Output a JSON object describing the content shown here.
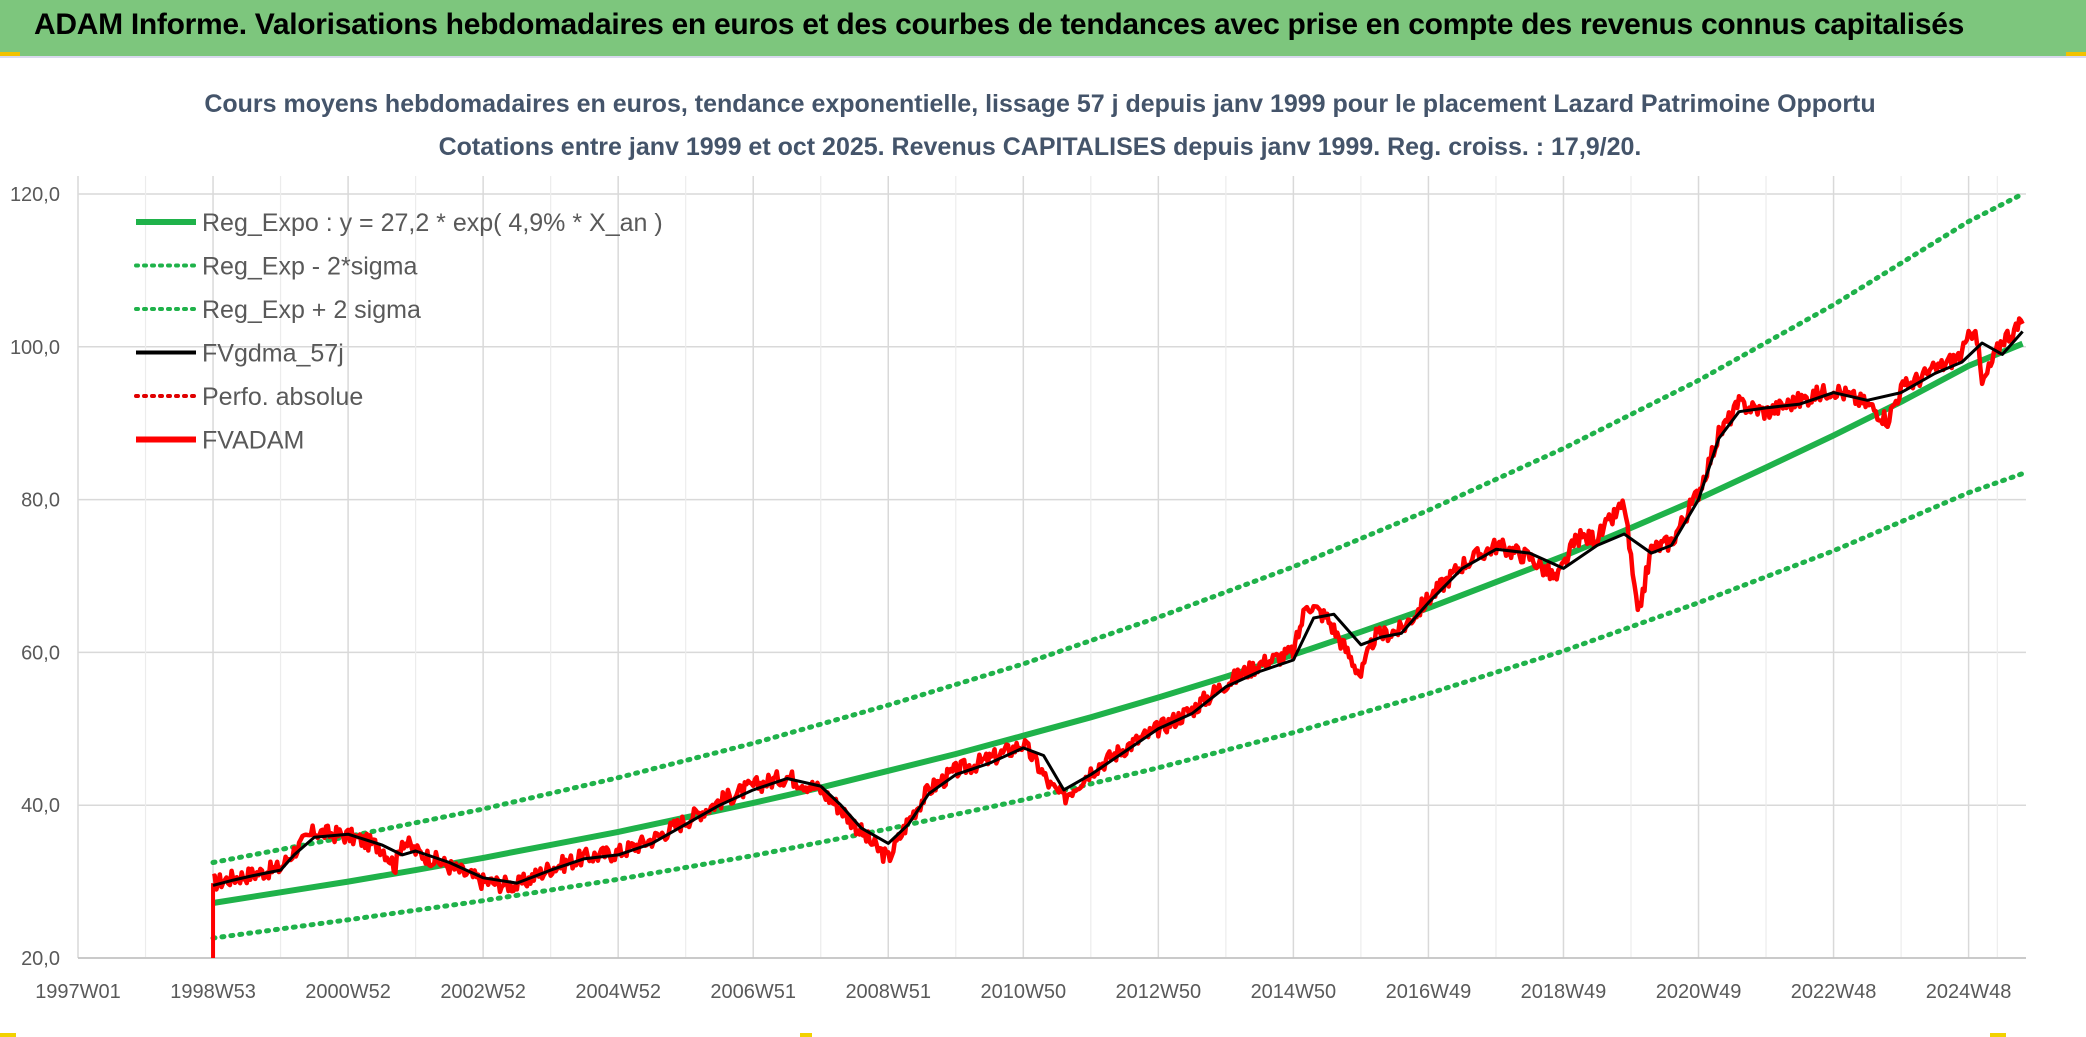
{
  "header": {
    "title": "ADAM Informe. Valorisations hebdomadaires en euros et des courbes de tendances avec prise en compte des revenus connus capitalisés"
  },
  "colors": {
    "header_bg": "#7dc67d",
    "reg_expo": "#1fb24a",
    "reg_band": "#1fb24a",
    "fvgdma": "#000000",
    "perfo": "#e00000",
    "fvadam": "#ff0000",
    "grid": "#d9d9d9",
    "title_text": "#44546a"
  },
  "chart_data": {
    "type": "line",
    "title": "Cours moyens hebdomadaires en euros, tendance exponentielle, lissage 57 j depuis janv 1999 pour le placement Lazard Patrimoine Opportu",
    "subtitle": "Cotations entre janv 1999 et oct 2025. Revenus CAPITALISES depuis janv 1999. Reg. croiss. : 17,9/20.",
    "xlabel": "",
    "ylabel": "",
    "ylim": [
      20,
      120
    ],
    "y_ticks": [
      "20,0",
      "40,0",
      "60,0",
      "80,0",
      "100,0",
      "120,0"
    ],
    "y_tick_values": [
      20,
      40,
      60,
      80,
      100,
      120
    ],
    "xlim": [
      1997.0,
      2025.85
    ],
    "x_ticks": [
      "1997W01",
      "1998W53",
      "2000W52",
      "2002W52",
      "2004W52",
      "2006W51",
      "2008W51",
      "2010W50",
      "2012W50",
      "2014W50",
      "2016W49",
      "2018W49",
      "2020W49",
      "2022W48",
      "2024W48"
    ],
    "x_tick_values": [
      1997.0,
      1999.0,
      2001.0,
      2003.0,
      2005.0,
      2007.0,
      2009.0,
      2011.0,
      2013.0,
      2015.0,
      2017.0,
      2019.0,
      2021.0,
      2023.0,
      2025.0
    ],
    "grid": true,
    "legend_position": "top-left",
    "legend": [
      {
        "name": "Reg_Expo : y = 27,2 * exp( 4,9% *  X_an )",
        "style": "solid-thick",
        "color": "#1fb24a"
      },
      {
        "name": "Reg_Exp - 2*sigma",
        "style": "dotted",
        "color": "#1fb24a"
      },
      {
        "name": "Reg_Exp + 2 sigma",
        "style": "dotted",
        "color": "#1fb24a"
      },
      {
        "name": "FVgdma_57j",
        "style": "solid",
        "color": "#000000"
      },
      {
        "name": "Perfo. absolue",
        "style": "dotted",
        "color": "#e00000"
      },
      {
        "name": "FVADAM",
        "style": "solid-thick",
        "color": "#ff0000"
      }
    ],
    "series": [
      {
        "name": "Reg_Expo",
        "x": [
          1999.0,
          2000.0,
          2001.0,
          2002.0,
          2003.0,
          2004.0,
          2005.0,
          2006.0,
          2007.0,
          2008.0,
          2009.0,
          2010.0,
          2011.0,
          2012.0,
          2013.0,
          2014.0,
          2015.0,
          2016.0,
          2017.0,
          2018.0,
          2019.0,
          2020.0,
          2021.0,
          2022.0,
          2023.0,
          2024.0,
          2025.0,
          2025.8
        ],
        "values": [
          27.2,
          28.6,
          30.0,
          31.5,
          33.1,
          34.8,
          36.5,
          38.4,
          40.3,
          42.3,
          44.5,
          46.7,
          49.1,
          51.5,
          54.1,
          56.8,
          59.7,
          62.7,
          65.8,
          69.2,
          72.6,
          76.3,
          80.1,
          84.2,
          88.4,
          92.8,
          97.5,
          100.4
        ]
      },
      {
        "name": "Reg_Exp - 2*sigma",
        "x": [
          1999.0,
          2001.0,
          2003.0,
          2005.0,
          2007.0,
          2009.0,
          2011.0,
          2013.0,
          2015.0,
          2017.0,
          2019.0,
          2021.0,
          2023.0,
          2025.0,
          2025.8
        ],
        "values": [
          22.6,
          25.0,
          27.5,
          30.3,
          33.4,
          36.9,
          40.7,
          44.9,
          49.5,
          54.6,
          60.2,
          66.5,
          73.3,
          80.9,
          83.4
        ]
      },
      {
        "name": "Reg_Exp + 2 sigma",
        "x": [
          1999.0,
          2001.0,
          2003.0,
          2005.0,
          2007.0,
          2009.0,
          2011.0,
          2013.0,
          2015.0,
          2017.0,
          2019.0,
          2021.0,
          2023.0,
          2025.0,
          2025.8
        ],
        "values": [
          32.5,
          35.9,
          39.5,
          43.6,
          48.1,
          53.1,
          58.5,
          64.6,
          71.2,
          78.6,
          86.7,
          95.6,
          105.5,
          116.4,
          120.0
        ]
      },
      {
        "name": "FVgdma_57j",
        "x": [
          1999.0,
          1999.3,
          1999.6,
          2000.0,
          2000.2,
          2000.5,
          2001.0,
          2001.5,
          2001.8,
          2002.0,
          2002.5,
          2003.0,
          2003.5,
          2004.0,
          2004.5,
          2005.0,
          2005.5,
          2006.0,
          2006.5,
          2007.0,
          2007.5,
          2008.0,
          2008.3,
          2008.6,
          2009.0,
          2009.3,
          2009.6,
          2010.0,
          2010.5,
          2011.0,
          2011.3,
          2011.6,
          2012.0,
          2012.5,
          2013.0,
          2013.5,
          2014.0,
          2014.5,
          2015.0,
          2015.3,
          2015.6,
          2016.0,
          2016.3,
          2016.6,
          2017.0,
          2017.5,
          2018.0,
          2018.5,
          2019.0,
          2019.5,
          2019.9,
          2020.3,
          2020.6,
          2021.0,
          2021.3,
          2021.6,
          2022.0,
          2022.5,
          2023.0,
          2023.5,
          2024.0,
          2024.5,
          2024.9,
          2025.2,
          2025.5,
          2025.8
        ],
        "values": [
          29.5,
          30.2,
          30.8,
          31.5,
          33.5,
          35.8,
          36.2,
          34.8,
          33.5,
          34.0,
          32.5,
          30.5,
          29.8,
          31.5,
          33.0,
          33.5,
          35.0,
          37.5,
          40.0,
          42.0,
          43.5,
          42.5,
          40.0,
          37.0,
          35.0,
          37.5,
          41.5,
          44.0,
          45.5,
          47.5,
          46.5,
          42.0,
          44.0,
          47.0,
          50.0,
          52.0,
          55.5,
          57.5,
          59.0,
          64.5,
          65.0,
          61.0,
          62.0,
          62.5,
          66.5,
          71.0,
          73.5,
          73.0,
          71.0,
          74.0,
          75.5,
          73.0,
          74.0,
          80.0,
          88.0,
          91.5,
          92.0,
          92.5,
          94.0,
          93.0,
          94.0,
          96.5,
          98.0,
          100.5,
          99.0,
          102.0
        ]
      },
      {
        "name": "FVADAM",
        "x": [
          1999.0,
          1999.3,
          1999.6,
          2000.0,
          2000.2,
          2000.5,
          2001.0,
          2001.5,
          2001.7,
          2001.8,
          2002.0,
          2002.5,
          2003.0,
          2003.5,
          2004.0,
          2004.5,
          2005.0,
          2005.5,
          2006.0,
          2006.5,
          2007.0,
          2007.5,
          2008.0,
          2008.3,
          2008.7,
          2009.0,
          2009.3,
          2009.6,
          2010.0,
          2010.5,
          2011.0,
          2011.2,
          2011.4,
          2011.6,
          2012.0,
          2012.5,
          2013.0,
          2013.5,
          2014.0,
          2014.5,
          2015.0,
          2015.2,
          2015.5,
          2015.8,
          2016.0,
          2016.2,
          2016.6,
          2017.0,
          2017.5,
          2018.0,
          2018.5,
          2018.9,
          2019.2,
          2019.5,
          2019.9,
          2020.1,
          2020.3,
          2020.6,
          2021.0,
          2021.3,
          2021.6,
          2022.0,
          2022.5,
          2023.0,
          2023.5,
          2023.8,
          2024.0,
          2024.5,
          2024.9,
          2025.1,
          2025.2,
          2025.5,
          2025.8
        ],
        "values": [
          29.8,
          30.5,
          31.0,
          31.8,
          34.0,
          36.5,
          36.0,
          34.5,
          32.0,
          35.5,
          34.0,
          32.0,
          30.0,
          29.5,
          31.8,
          33.2,
          33.8,
          35.5,
          38.0,
          40.5,
          42.5,
          43.8,
          42.0,
          39.5,
          35.5,
          33.0,
          38.0,
          42.0,
          44.5,
          46.0,
          48.0,
          45.5,
          42.5,
          41.0,
          44.5,
          47.5,
          50.0,
          52.5,
          56.0,
          58.5,
          60.0,
          66.5,
          64.5,
          60.0,
          57.0,
          62.0,
          63.0,
          67.0,
          71.5,
          74.0,
          72.5,
          69.5,
          75.0,
          75.0,
          79.5,
          64.5,
          73.5,
          74.5,
          81.0,
          88.5,
          92.5,
          91.5,
          93.0,
          94.5,
          92.5,
          90.5,
          94.5,
          97.0,
          99.0,
          103.0,
          95.0,
          101.0,
          103.0
        ]
      }
    ]
  }
}
